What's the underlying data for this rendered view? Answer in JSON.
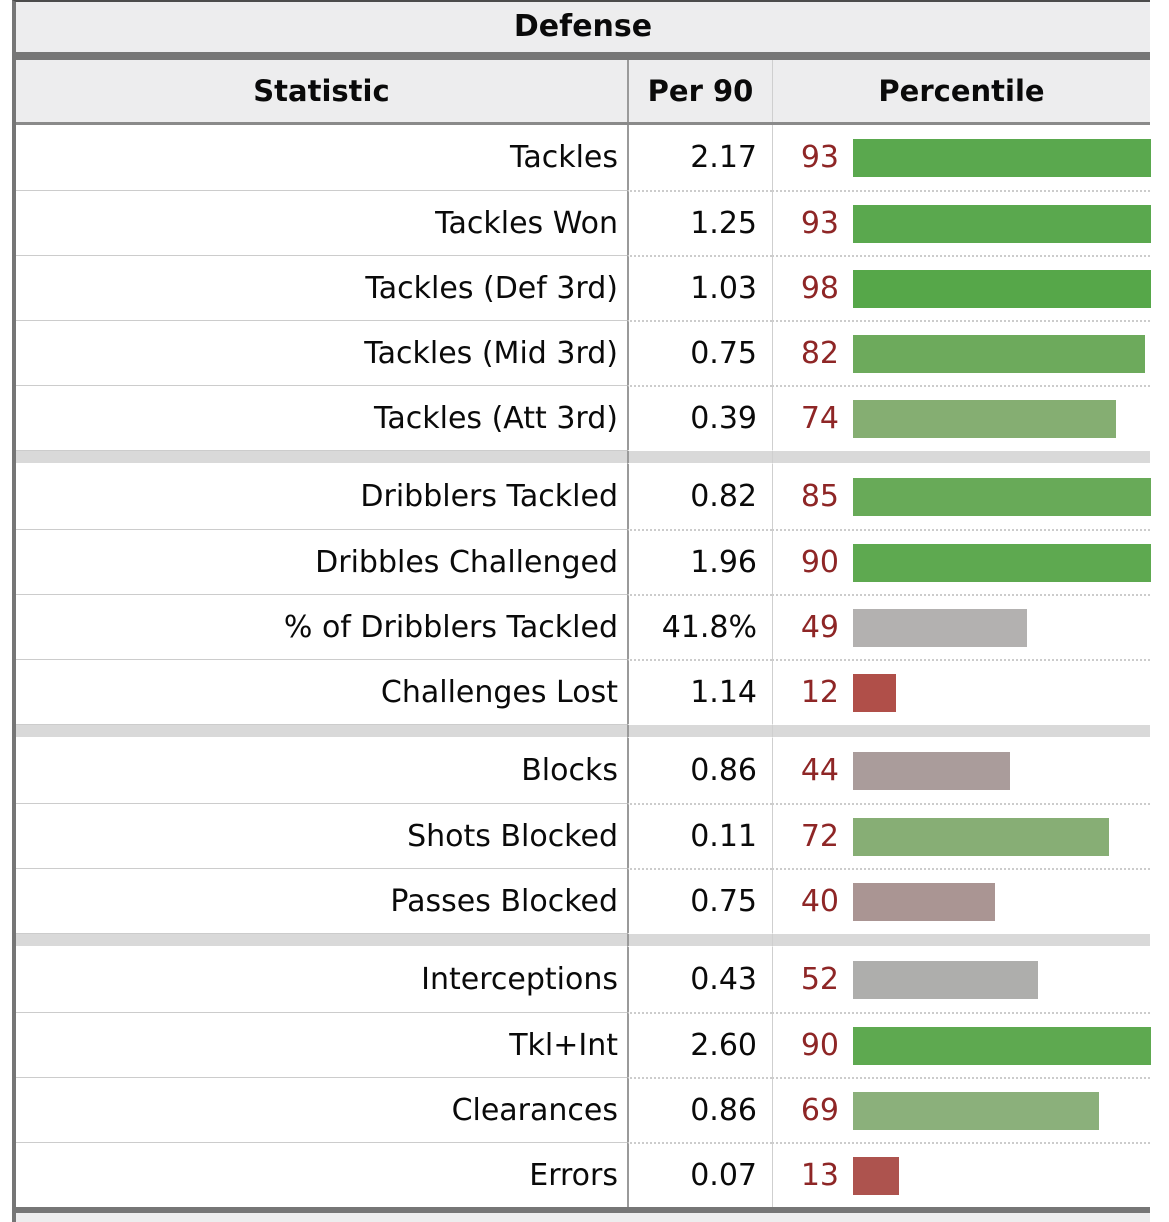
{
  "table": {
    "title": "Defense",
    "columns": {
      "statistic": "Statistic",
      "per90": "Per 90",
      "percentile": "Percentile"
    },
    "groups": [
      {
        "rows": [
          {
            "stat": "Tackles",
            "per90": "2.17",
            "percentile": 93,
            "color": "#5aa84e"
          },
          {
            "stat": "Tackles Won",
            "per90": "1.25",
            "percentile": 93,
            "color": "#5aa84e"
          },
          {
            "stat": "Tackles (Def 3rd)",
            "per90": "1.03",
            "percentile": 98,
            "color": "#56a749"
          },
          {
            "stat": "Tackles (Mid 3rd)",
            "per90": "0.75",
            "percentile": 82,
            "color": "#6daa5c"
          },
          {
            "stat": "Tackles (Att 3rd)",
            "per90": "0.39",
            "percentile": 74,
            "color": "#85ae72"
          }
        ]
      },
      {
        "rows": [
          {
            "stat": "Dribblers Tackled",
            "per90": "0.82",
            "percentile": 85,
            "color": "#68aa58"
          },
          {
            "stat": "Dribbles Challenged",
            "per90": "1.96",
            "percentile": 90,
            "color": "#5ea950"
          },
          {
            "stat": "% of Dribblers Tackled",
            "per90": "41.8%",
            "percentile": 49,
            "color": "#b3b1b0"
          },
          {
            "stat": "Challenges Lost",
            "per90": "1.14",
            "percentile": 12,
            "color": "#b04f49"
          }
        ]
      },
      {
        "rows": [
          {
            "stat": "Blocks",
            "per90": "0.86",
            "percentile": 44,
            "color": "#aa9c9b"
          },
          {
            "stat": "Shots Blocked",
            "per90": "0.11",
            "percentile": 72,
            "color": "#87ae75"
          },
          {
            "stat": "Passes Blocked",
            "per90": "0.75",
            "percentile": 40,
            "color": "#aa9593"
          }
        ]
      },
      {
        "rows": [
          {
            "stat": "Interceptions",
            "per90": "0.43",
            "percentile": 52,
            "color": "#aeaeac"
          },
          {
            "stat": "Tkl+Int",
            "per90": "2.60",
            "percentile": 90,
            "color": "#5ea950"
          },
          {
            "stat": "Clearances",
            "per90": "0.86",
            "percentile": 69,
            "color": "#8bb07b"
          },
          {
            "stat": "Errors",
            "per90": "0.07",
            "percentile": 13,
            "color": "#ad534e"
          }
        ]
      }
    ],
    "colors": {
      "percentile_text": "#8e2626",
      "header_bg": "#ededee",
      "separator_band": "#767676",
      "row_border": "#cccccc"
    }
  },
  "chart_data": {
    "type": "bar",
    "orientation": "horizontal",
    "title": "Defense",
    "xlabel": "Percentile",
    "ylabel": "Statistic",
    "xlim": [
      0,
      100
    ],
    "grid": false,
    "legend_position": "none",
    "categories": [
      "Tackles",
      "Tackles Won",
      "Tackles (Def 3rd)",
      "Tackles (Mid 3rd)",
      "Tackles (Att 3rd)",
      "Dribblers Tackled",
      "Dribbles Challenged",
      "% of Dribblers Tackled",
      "Challenges Lost",
      "Blocks",
      "Shots Blocked",
      "Passes Blocked",
      "Interceptions",
      "Tkl+Int",
      "Clearances",
      "Errors"
    ],
    "series": [
      {
        "name": "Per 90",
        "values": [
          "2.17",
          "1.25",
          "1.03",
          "0.75",
          "0.39",
          "0.82",
          "1.96",
          "41.8%",
          "1.14",
          "0.86",
          "0.11",
          "0.75",
          "0.43",
          "2.60",
          "0.86",
          "0.07"
        ]
      },
      {
        "name": "Percentile",
        "values": [
          93,
          93,
          98,
          82,
          74,
          85,
          90,
          49,
          12,
          44,
          72,
          40,
          52,
          90,
          69,
          13
        ]
      }
    ],
    "group_breaks_after": [
      "Tackles (Att 3rd)",
      "Challenges Lost",
      "Passes Blocked"
    ]
  }
}
